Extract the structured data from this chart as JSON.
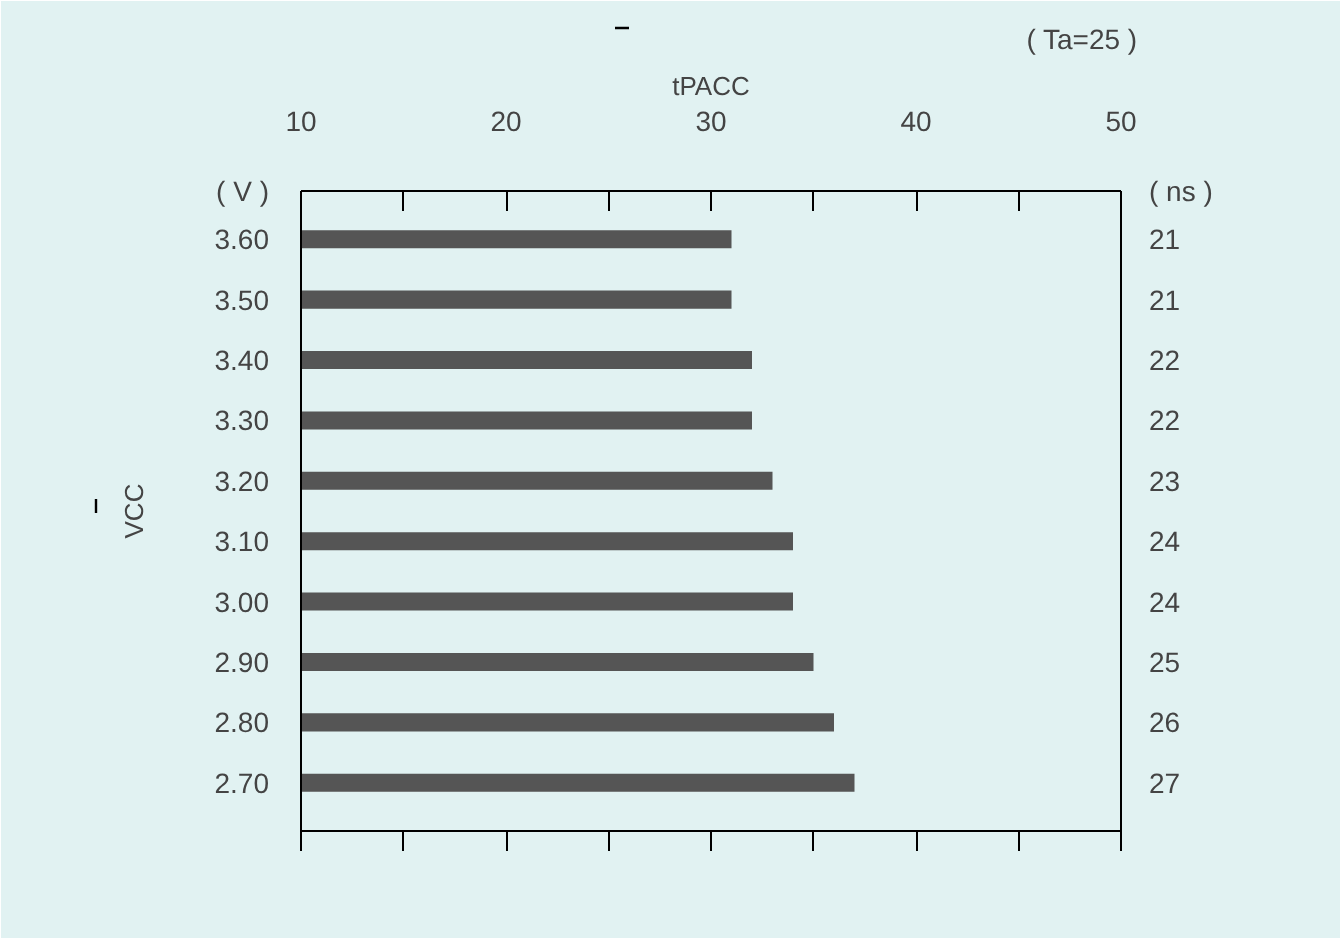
{
  "chart_data": {
    "type": "bar",
    "orientation": "horizontal",
    "xlabel": "tPACC",
    "ylabel": "VCC",
    "categories": [
      "3.60",
      "3.50",
      "3.40",
      "3.30",
      "3.20",
      "3.10",
      "3.00",
      "2.90",
      "2.80",
      "2.70"
    ],
    "values": [
      21,
      21,
      22,
      22,
      23,
      24,
      24,
      25,
      26,
      27
    ],
    "base": [
      10,
      10,
      10,
      10,
      10,
      10,
      10,
      10,
      10,
      10
    ],
    "color": "#555555",
    "xlim": [
      10,
      50
    ],
    "xticks": [
      10,
      {
        "value": 15,
        "label": null
      },
      20,
      {
        "value": 25,
        "label": null
      },
      30,
      {
        "value": 35,
        "label": null
      },
      40,
      {
        "value": 45,
        "label": null
      },
      50
    ],
    "data_labels": true,
    "grid": false,
    "annotations": [
      "( Ta=25    )",
      "( V )",
      "( ns )"
    ]
  }
}
